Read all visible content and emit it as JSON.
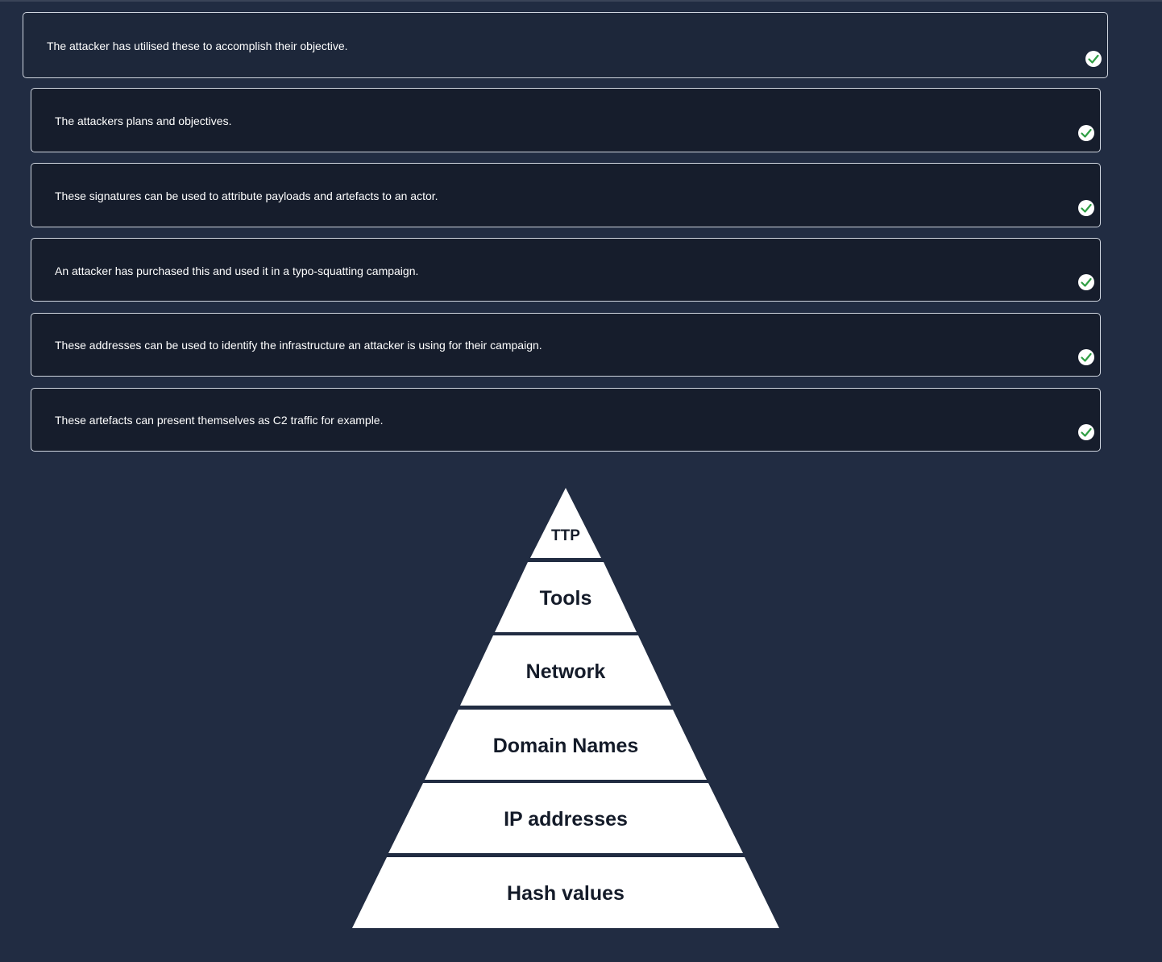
{
  "matches": [
    {
      "text": "The attacker has utilised these to accomplish their objective.",
      "answered": true
    },
    {
      "text": "The attackers plans and objectives.",
      "answered": true
    },
    {
      "text": "These signatures can be used to attribute payloads and artefacts to an actor.",
      "answered": true
    },
    {
      "text": "An attacker has purchased this and used it in a typo-squatting campaign.",
      "answered": true
    },
    {
      "text": "These addresses can be used to identify the infrastructure an attacker is using for their campaign.",
      "answered": true
    },
    {
      "text": "These artefacts can present themselves as C2 traffic for example.",
      "answered": true
    }
  ],
  "pyramid": {
    "levels": [
      "TTP",
      "Tools",
      "Network",
      "Domain Names",
      "IP addresses",
      "Hash values"
    ]
  },
  "colors": {
    "background": "#212c42",
    "card": "#161d2c",
    "card_active": "#1d273a",
    "card_border": "#cfd5df",
    "check_fill": "#ffffff",
    "check_mark": "#2f9e44",
    "pyramid_fill": "#ffffff",
    "pyramid_text": "#141b29"
  },
  "icons": {
    "answered": "check-circle-icon"
  }
}
